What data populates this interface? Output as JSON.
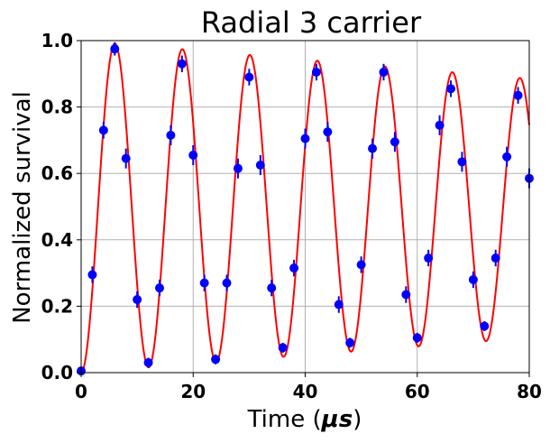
{
  "chart_data": {
    "type": "scatter",
    "title": "Radial 3 carrier",
    "xlabel_prefix": "Time (",
    "xlabel_unit": "μs",
    "xlabel_suffix": ")",
    "ylabel": "Normalized survival",
    "xlim": [
      0,
      80
    ],
    "ylim": [
      0,
      1.0
    ],
    "x_ticks": [
      0,
      20,
      40,
      60,
      80
    ],
    "x_tick_labels": [
      "0",
      "20",
      "40",
      "60",
      "80"
    ],
    "y_ticks": [
      0.0,
      0.2,
      0.4,
      0.6,
      0.8,
      1.0
    ],
    "y_tick_labels": [
      "0.0",
      "0.2",
      "0.4",
      "0.6",
      "0.8",
      "1.0"
    ],
    "grid": true,
    "series": [
      {
        "kind": "points-with-errorbars",
        "color": "#0000ff",
        "x": [
          0,
          2,
          4,
          6,
          8,
          10,
          12,
          14,
          16,
          18,
          20,
          22,
          24,
          26,
          28,
          30,
          32,
          34,
          36,
          38,
          40,
          42,
          44,
          46,
          48,
          50,
          52,
          54,
          56,
          58,
          60,
          62,
          64,
          66,
          68,
          70,
          72,
          74,
          76,
          78,
          80
        ],
        "y": [
          0.005,
          0.295,
          0.73,
          0.975,
          0.645,
          0.22,
          0.03,
          0.255,
          0.715,
          0.93,
          0.655,
          0.27,
          0.04,
          0.27,
          0.615,
          0.89,
          0.625,
          0.255,
          0.075,
          0.315,
          0.705,
          0.905,
          0.725,
          0.205,
          0.09,
          0.325,
          0.675,
          0.905,
          0.695,
          0.235,
          0.105,
          0.345,
          0.745,
          0.855,
          0.635,
          0.28,
          0.14,
          0.345,
          0.65,
          0.835,
          0.585
        ],
        "yerr": [
          0.01,
          0.025,
          0.025,
          0.02,
          0.03,
          0.025,
          0.015,
          0.025,
          0.03,
          0.025,
          0.03,
          0.025,
          0.015,
          0.025,
          0.03,
          0.025,
          0.03,
          0.025,
          0.015,
          0.025,
          0.03,
          0.025,
          0.03,
          0.025,
          0.015,
          0.025,
          0.03,
          0.025,
          0.03,
          0.025,
          0.015,
          0.025,
          0.03,
          0.025,
          0.03,
          0.025,
          0.015,
          0.025,
          0.03,
          0.025,
          0.03
        ]
      },
      {
        "kind": "fit-curve",
        "color": "#ff0000",
        "model": {
          "period_us": 12.05,
          "phase_offset_us": 0.0,
          "amplitude_start": 0.5,
          "amplitude_end": 0.39,
          "mean": 0.5,
          "mean_end": 0.495
        }
      }
    ]
  }
}
